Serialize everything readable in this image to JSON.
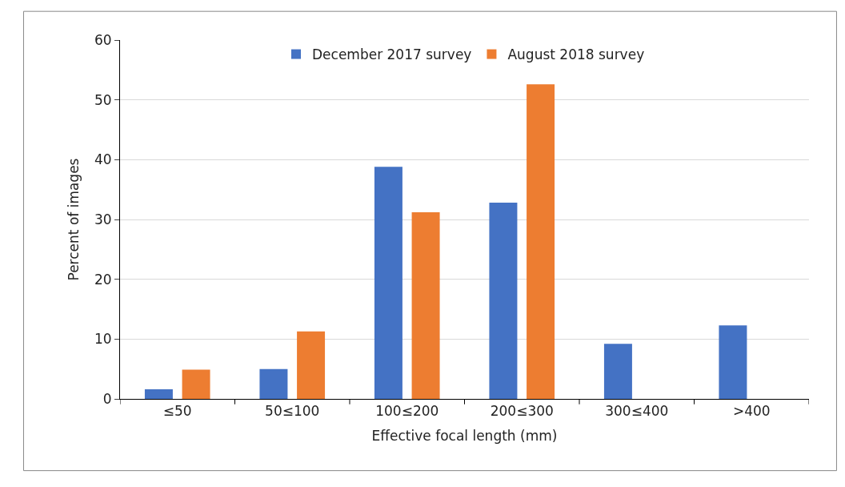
{
  "chart_data": {
    "type": "bar",
    "xlabel": "Effective focal length (mm)",
    "ylabel": "Percent of images",
    "categories": [
      "≤50",
      "50≤100",
      "100≤200",
      "200≤300",
      "300≤400",
      ">400"
    ],
    "series": [
      {
        "name": "December 2017 survey",
        "color": "#4472c4",
        "values": [
          1.6,
          5.0,
          38.8,
          32.8,
          9.2,
          12.3
        ]
      },
      {
        "name": "August 2018 survey",
        "color": "#ed7d31",
        "values": [
          4.9,
          11.3,
          31.2,
          52.6,
          0,
          0
        ]
      }
    ],
    "ylim": [
      0,
      60
    ],
    "yticks": [
      0,
      10,
      20,
      30,
      40,
      50,
      60
    ],
    "grid": "y",
    "legend": "top"
  }
}
